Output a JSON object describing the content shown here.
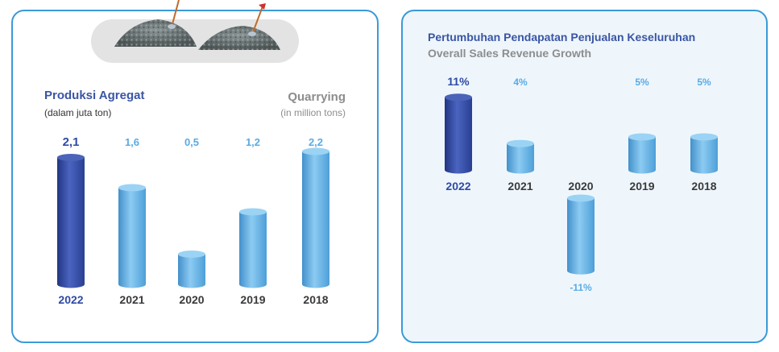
{
  "colors": {
    "highlight": "#2f4aa6",
    "bar": "#5aabe3",
    "frame": "#3a9ad9",
    "title": "#3a55a4",
    "subtitle": "#8d8d8d"
  },
  "left": {
    "title_id": "Produksi Agregat",
    "unit_id": "(dalam juta ton)",
    "title_en": "Quarrying",
    "unit_en": "(in million tons)",
    "illustration": "gravel-piles-icon"
  },
  "right": {
    "title_id": "Pertumbuhan Pendapatan Penjualan Keseluruhan",
    "title_en": "Overall Sales Revenue Growth"
  },
  "chart_data": [
    {
      "type": "bar",
      "categories": [
        "2022",
        "2021",
        "2020",
        "2019",
        "2018"
      ],
      "values": [
        2.1,
        1.6,
        0.5,
        1.2,
        2.2
      ],
      "value_labels": [
        "2,1",
        "1,6",
        "0,5",
        "1,2",
        "2,2"
      ],
      "title": "Produksi Agregat",
      "highlight_index": 0
    },
    {
      "type": "bar",
      "categories": [
        "2022",
        "2021",
        "2020",
        "2019",
        "2018"
      ],
      "values": [
        11,
        4,
        -11,
        5,
        5
      ],
      "value_labels": [
        "11%",
        "4%",
        "-11%",
        "5%",
        "5%"
      ],
      "title": "Pertumbuhan Pendapatan Penjualan Keseluruhan",
      "highlight_index": 0
    }
  ]
}
